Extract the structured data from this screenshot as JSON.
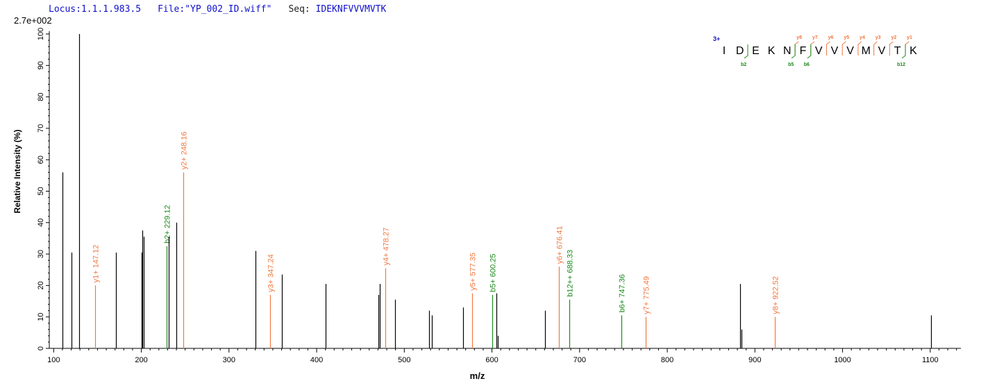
{
  "header": {
    "locus": "Locus:1.1.1.983.5",
    "file": "File:\"YP_002_ID.wiff\"",
    "seq_label": "Seq:",
    "seq_value": "IDEKNFVVVMVTK"
  },
  "max_intensity_label": "2.7e+002",
  "chart_data": {
    "type": "bar",
    "xlabel": "m/z",
    "ylabel": "Relative   Intensity (%)",
    "xlim": [
      95,
      1135
    ],
    "ylim": [
      0,
      101
    ],
    "xticks": [
      100,
      200,
      300,
      400,
      500,
      600,
      700,
      800,
      900,
      1000,
      1100
    ],
    "yticks": [
      0,
      10,
      20,
      30,
      40,
      50,
      60,
      70,
      80,
      90,
      100
    ],
    "colors": {
      "unassigned": "#000000",
      "y_ion": "#f07840",
      "b_ion": "#1a8a1a",
      "charge": "#1010c8"
    },
    "peaks": [
      {
        "mz": 110.1,
        "intensity": 56
      },
      {
        "mz": 120.1,
        "intensity": 30.5
      },
      {
        "mz": 129.1,
        "intensity": 100
      },
      {
        "mz": 147.12,
        "intensity": 20,
        "label": "y1+ 147.12",
        "ion": "y"
      },
      {
        "mz": 171.1,
        "intensity": 30.5
      },
      {
        "mz": 200.1,
        "intensity": 30.5
      },
      {
        "mz": 201.1,
        "intensity": 37.5
      },
      {
        "mz": 203.1,
        "intensity": 35.5
      },
      {
        "mz": 229.12,
        "intensity": 32.5,
        "label": "b2+ 229.12",
        "ion": "b"
      },
      {
        "mz": 231.1,
        "intensity": 35.5
      },
      {
        "mz": 240.1,
        "intensity": 40
      },
      {
        "mz": 248.16,
        "intensity": 56,
        "label": "y2+ 248.16",
        "ion": "y"
      },
      {
        "mz": 330.2,
        "intensity": 31
      },
      {
        "mz": 347.24,
        "intensity": 17,
        "label": "y3+ 347.24",
        "ion": "y"
      },
      {
        "mz": 360.2,
        "intensity": 23.5
      },
      {
        "mz": 410.2,
        "intensity": 20.5
      },
      {
        "mz": 470.2,
        "intensity": 17
      },
      {
        "mz": 472.2,
        "intensity": 20.5
      },
      {
        "mz": 478.27,
        "intensity": 25.5,
        "label": "y4+ 478.27",
        "ion": "y"
      },
      {
        "mz": 489.3,
        "intensity": 15.5
      },
      {
        "mz": 528.3,
        "intensity": 12
      },
      {
        "mz": 531.3,
        "intensity": 10.5
      },
      {
        "mz": 567.3,
        "intensity": 13
      },
      {
        "mz": 577.35,
        "intensity": 17.5,
        "label": "y5+ 577.35",
        "ion": "y"
      },
      {
        "mz": 600.25,
        "intensity": 17,
        "label": "b5+ 600.25",
        "ion": "b"
      },
      {
        "mz": 605.3,
        "intensity": 17.5
      },
      {
        "mz": 606.3,
        "intensity": 4
      },
      {
        "mz": 660.3,
        "intensity": 12
      },
      {
        "mz": 676.41,
        "intensity": 26,
        "label": "y6+ 676.41",
        "ion": "y"
      },
      {
        "mz": 688.33,
        "intensity": 15.5,
        "label": "b12++ 688.33",
        "ion": "b"
      },
      {
        "mz": 747.36,
        "intensity": 10.5,
        "label": "b6+ 747.36",
        "ion": "b"
      },
      {
        "mz": 775.49,
        "intensity": 10,
        "label": "y7+ 775.49",
        "ion": "y"
      },
      {
        "mz": 883.5,
        "intensity": 20.5
      },
      {
        "mz": 884.5,
        "intensity": 6
      },
      {
        "mz": 922.52,
        "intensity": 10,
        "label": "y8+ 922.52",
        "ion": "y"
      },
      {
        "mz": 1100.6,
        "intensity": 10.5
      }
    ]
  },
  "sequence_map": {
    "charge": "3+",
    "residues": [
      "I",
      "D",
      "E",
      "K",
      "N",
      "F",
      "V",
      "V",
      "V",
      "M",
      "V",
      "T",
      "K"
    ],
    "y_ions": [
      {
        "after": 5,
        "label": "y8"
      },
      {
        "after": 6,
        "label": "y7"
      },
      {
        "after": 7,
        "label": "y6"
      },
      {
        "after": 8,
        "label": "y5"
      },
      {
        "after": 9,
        "label": "y4"
      },
      {
        "after": 10,
        "label": "y3"
      },
      {
        "after": 11,
        "label": "y2"
      },
      {
        "after": 12,
        "label": "y1"
      }
    ],
    "b_ions": [
      {
        "after": 2,
        "label": "b2"
      },
      {
        "after": 5,
        "label": "b5"
      },
      {
        "after": 6,
        "label": "b6"
      },
      {
        "after": 12,
        "label": "b12"
      }
    ]
  }
}
